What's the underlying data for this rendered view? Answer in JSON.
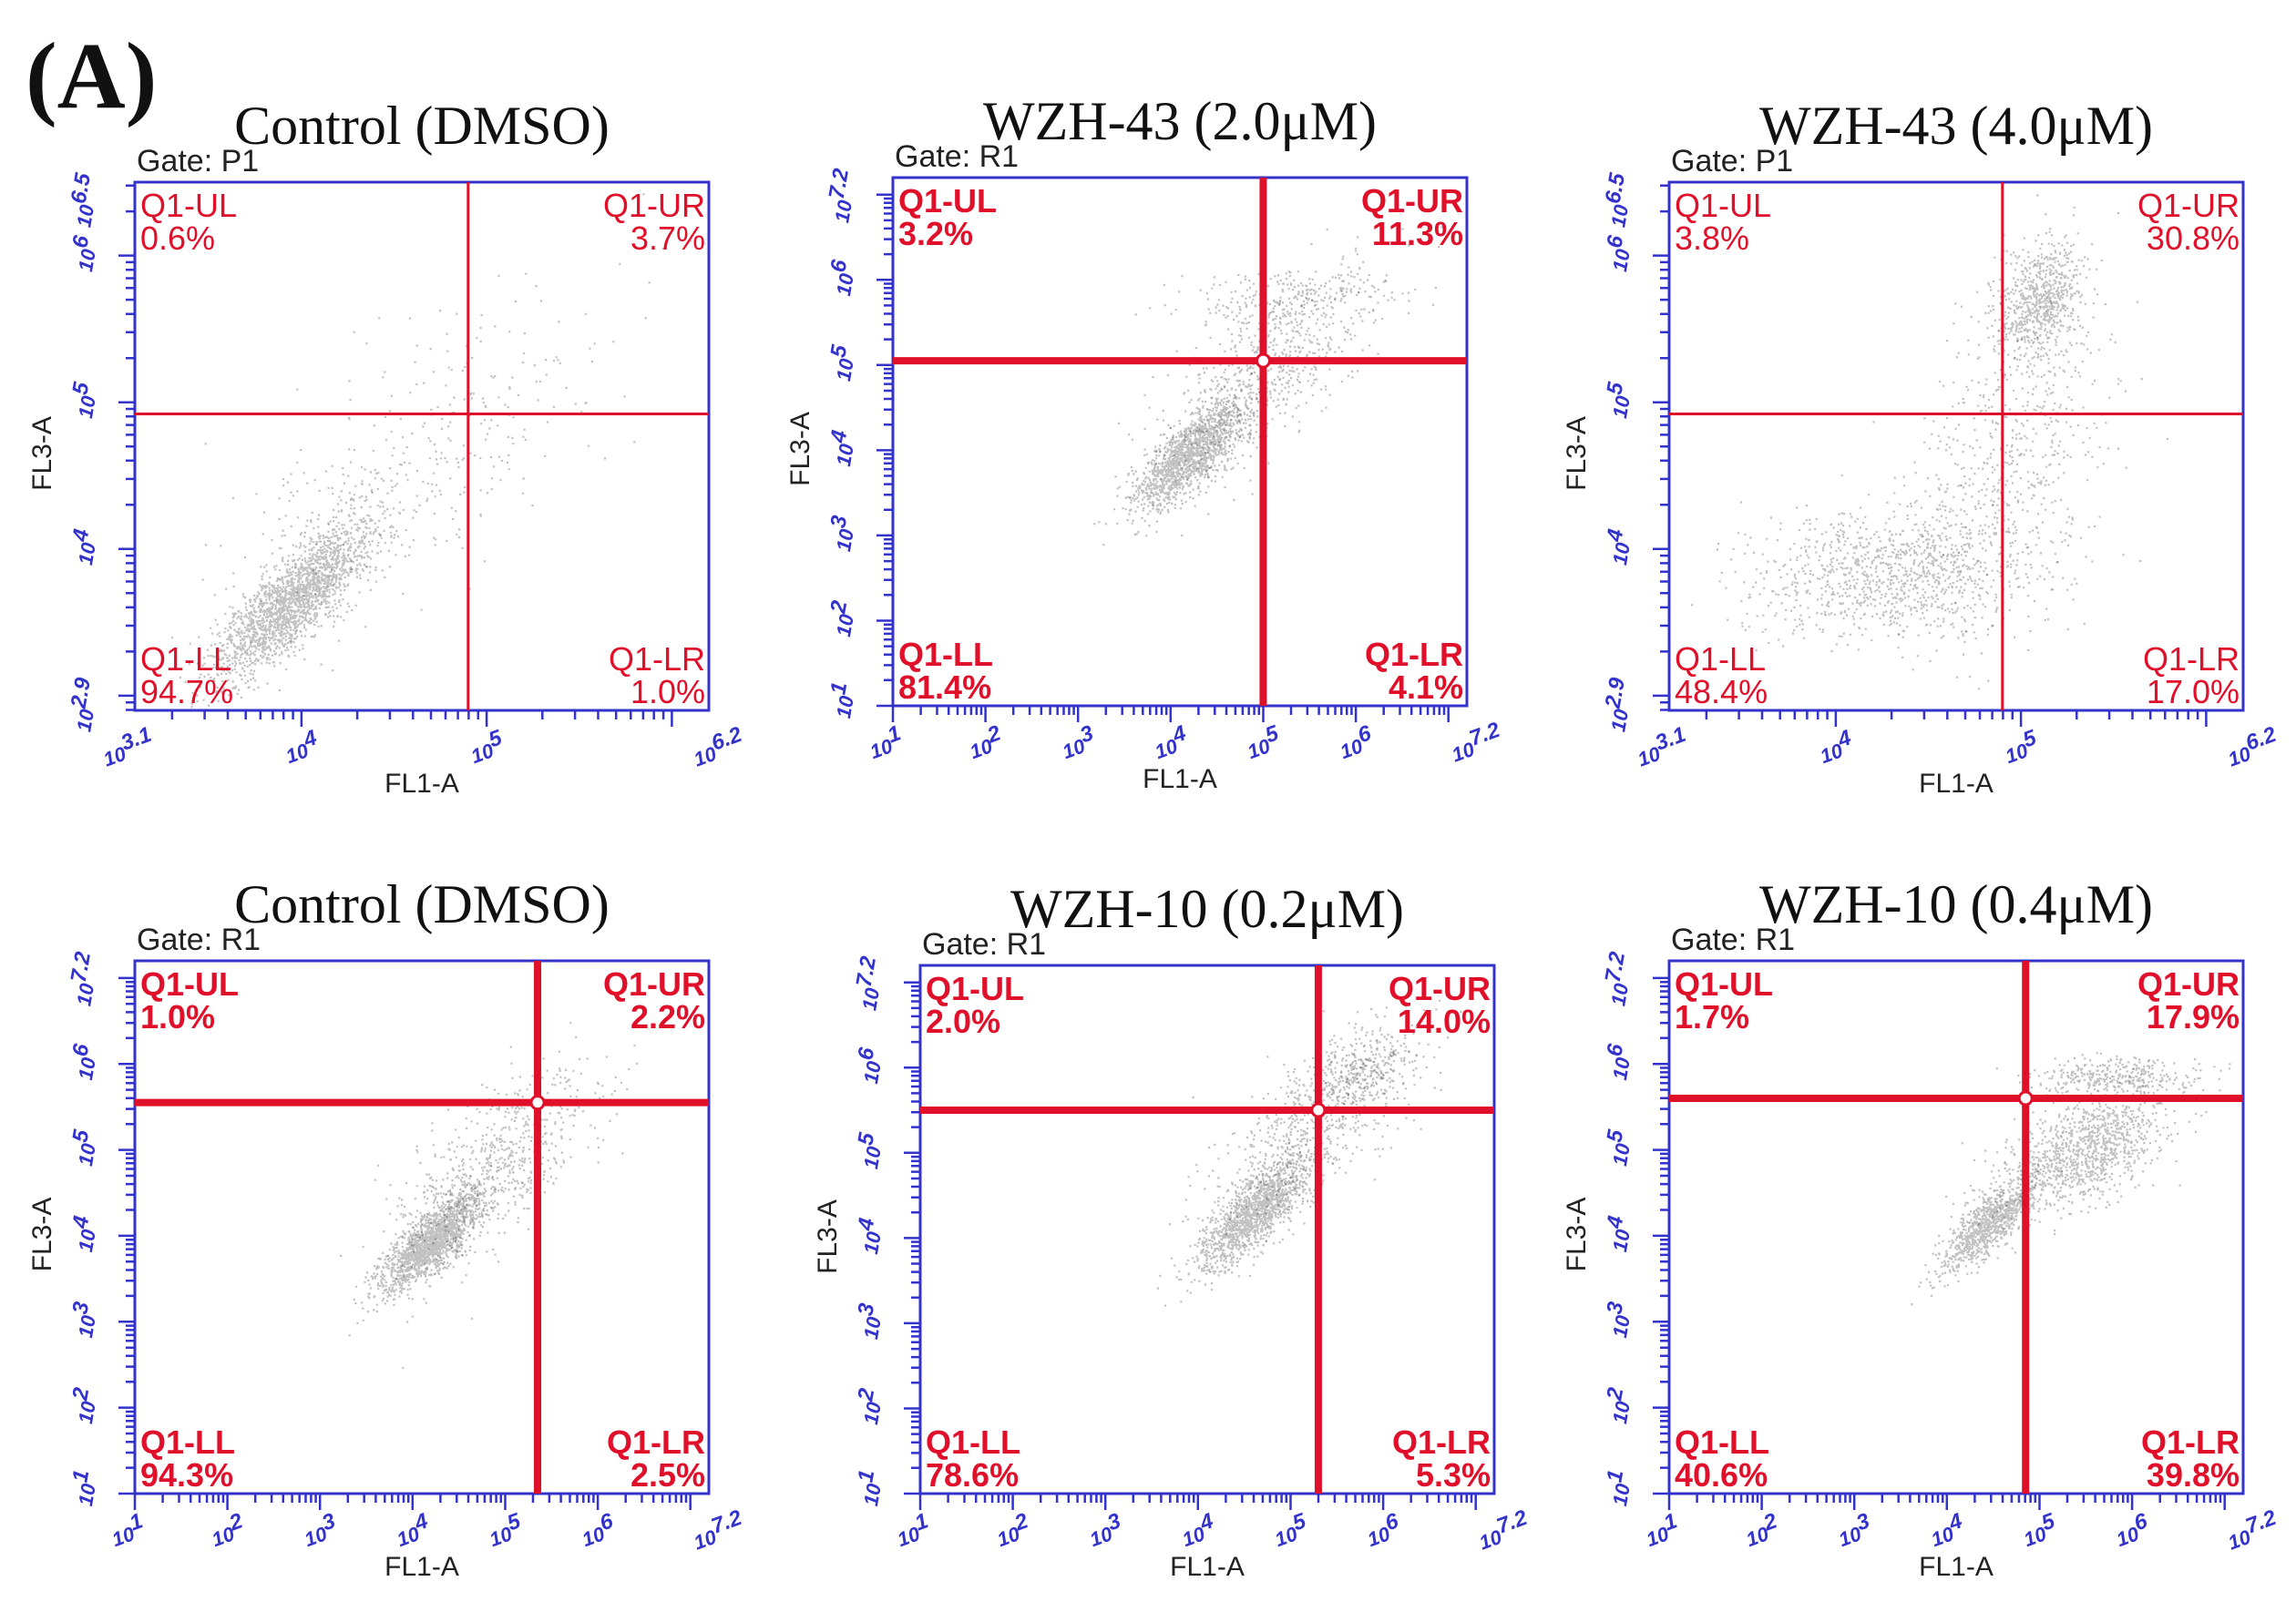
{
  "figure": {
    "panel_label": "(A)",
    "gate_prefix": "Gate: "
  },
  "colors": {
    "axis": "#3333cc",
    "quadrant": "#e0102a",
    "dots": "#222222",
    "title": "#111111"
  },
  "chart_data": [
    {
      "type": "scatter",
      "title": "Control (DMSO)",
      "gate": "P1",
      "xlabel": "FL1-A",
      "ylabel": "FL3-A",
      "xlim": [
        3.1,
        6.2
      ],
      "ylim": [
        2.9,
        6.5
      ],
      "xticks": [
        4,
        5
      ],
      "yticks": [
        4,
        5,
        6
      ],
      "xmin_label": "10^3.1",
      "xmax_label": "10^6.2",
      "ymin_label": "10^2.9",
      "ymax_label": "10^6.5",
      "gate_x": 4.9,
      "gate_y": 4.92,
      "thick": false,
      "quadrants": {
        "UL": "0.6%",
        "UR": "3.7%",
        "LL": "94.7%",
        "LR": "1.0%"
      },
      "quadrant_names": {
        "UL": "Q1-UL",
        "UR": "Q1-UR",
        "LL": "Q1-LL",
        "LR": "Q1-LR"
      },
      "clusters": [
        {
          "cx": 3.95,
          "cy": 3.65,
          "sx": 0.22,
          "sy": 0.28,
          "rho": 0.82,
          "w": 0.85
        },
        {
          "cx": 4.6,
          "cy": 4.6,
          "sx": 0.5,
          "sy": 0.6,
          "rho": 0.7,
          "w": 0.15
        }
      ]
    },
    {
      "type": "scatter",
      "title": "WZH-43 (2.0μM)",
      "gate": "R1",
      "xlabel": "FL1-A",
      "ylabel": "FL3-A",
      "xlim": [
        1,
        7.2
      ],
      "ylim": [
        1,
        7.2
      ],
      "xticks": [
        2,
        3,
        4,
        5,
        6
      ],
      "yticks": [
        2,
        3,
        4,
        5,
        6
      ],
      "xmin_label": "10^1",
      "xmax_label": "10^7.2",
      "ymin_label": "10^1",
      "ymax_label": "10^7.2",
      "gate_x": 5.0,
      "gate_y": 5.05,
      "thick": true,
      "quadrants": {
        "UL": "3.2%",
        "UR": "11.3%",
        "LL": "81.4%",
        "LR": "4.1%"
      },
      "quadrant_names": {
        "UL": "Q1-UL",
        "UR": "Q1-UR",
        "LL": "Q1-LL",
        "LR": "Q1-LR"
      },
      "clusters": [
        {
          "cx": 4.2,
          "cy": 3.95,
          "sx": 0.3,
          "sy": 0.32,
          "rho": 0.75,
          "w": 0.6
        },
        {
          "cx": 5.0,
          "cy": 4.9,
          "sx": 0.55,
          "sy": 0.6,
          "rho": 0.7,
          "w": 0.3
        },
        {
          "cx": 5.3,
          "cy": 5.8,
          "sx": 0.6,
          "sy": 0.18,
          "rho": 0.2,
          "w": 0.1
        }
      ]
    },
    {
      "type": "scatter",
      "title": "WZH-43 (4.0μM)",
      "gate": "P1",
      "xlabel": "FL1-A",
      "ylabel": "FL3-A",
      "xlim": [
        3.1,
        6.2
      ],
      "ylim": [
        2.9,
        6.5
      ],
      "xticks": [
        4,
        5
      ],
      "yticks": [
        4,
        5,
        6
      ],
      "xmin_label": "10^3.1",
      "xmax_label": "10^6.2",
      "ymin_label": "10^2.9",
      "ymax_label": "10^6.5",
      "gate_x": 4.9,
      "gate_y": 4.92,
      "thick": false,
      "quadrants": {
        "UL": "3.8%",
        "UR": "30.8%",
        "LL": "48.4%",
        "LR": "17.0%"
      },
      "quadrant_names": {
        "UL": "Q1-UL",
        "UR": "Q1-UR",
        "LL": "Q1-LL",
        "LR": "Q1-LR"
      },
      "clusters": [
        {
          "cx": 4.3,
          "cy": 3.85,
          "sx": 0.38,
          "sy": 0.22,
          "rho": 0.1,
          "w": 0.45
        },
        {
          "cx": 5.1,
          "cy": 5.7,
          "sx": 0.12,
          "sy": 0.2,
          "rho": 0.3,
          "w": 0.3
        },
        {
          "cx": 4.95,
          "cy": 4.6,
          "sx": 0.25,
          "sy": 0.55,
          "rho": 0.3,
          "w": 0.25
        }
      ]
    },
    {
      "type": "scatter",
      "title": "Control (DMSO)",
      "gate": "R1",
      "xlabel": "FL1-A",
      "ylabel": "FL3-A",
      "xlim": [
        1,
        7.2
      ],
      "ylim": [
        1,
        7.2
      ],
      "xticks": [
        2,
        3,
        4,
        5,
        6
      ],
      "yticks": [
        2,
        3,
        4,
        5,
        6
      ],
      "xmin_label": "10^1",
      "xmax_label": "10^7.2",
      "ymin_label": "10^1",
      "ymax_label": "10^7.2",
      "gate_x": 5.35,
      "gate_y": 5.55,
      "thick": true,
      "quadrants": {
        "UL": "1.0%",
        "UR": "2.2%",
        "LL": "94.3%",
        "LR": "2.5%"
      },
      "quadrant_names": {
        "UL": "Q1-UL",
        "UR": "Q1-UR",
        "LL": "Q1-LL",
        "LR": "Q1-LR"
      },
      "clusters": [
        {
          "cx": 4.2,
          "cy": 3.95,
          "sx": 0.28,
          "sy": 0.3,
          "rho": 0.78,
          "w": 0.7
        },
        {
          "cx": 4.9,
          "cy": 4.8,
          "sx": 0.55,
          "sy": 0.6,
          "rho": 0.7,
          "w": 0.3
        }
      ]
    },
    {
      "type": "scatter",
      "title": "WZH-10 (0.2μM)",
      "gate": "R1",
      "xlabel": "FL1-A",
      "ylabel": "FL3-A",
      "xlim": [
        1,
        7.2
      ],
      "ylim": [
        1,
        7.2
      ],
      "xticks": [
        2,
        3,
        4,
        5,
        6
      ],
      "yticks": [
        2,
        3,
        4,
        5,
        6
      ],
      "xmin_label": "10^1",
      "xmax_label": "10^7.2",
      "ymin_label": "10^1",
      "ymax_label": "10^7.2",
      "gate_x": 5.3,
      "gate_y": 5.5,
      "thick": true,
      "quadrants": {
        "UL": "2.0%",
        "UR": "14.0%",
        "LL": "78.6%",
        "LR": "5.3%"
      },
      "quadrant_names": {
        "UL": "Q1-UL",
        "UR": "Q1-UR",
        "LL": "Q1-LL",
        "LR": "Q1-LR"
      },
      "clusters": [
        {
          "cx": 4.6,
          "cy": 4.3,
          "sx": 0.3,
          "sy": 0.32,
          "rho": 0.78,
          "w": 0.6
        },
        {
          "cx": 5.3,
          "cy": 5.4,
          "sx": 0.55,
          "sy": 0.55,
          "rho": 0.7,
          "w": 0.3
        },
        {
          "cx": 5.75,
          "cy": 6.0,
          "sx": 0.25,
          "sy": 0.25,
          "rho": 0.3,
          "w": 0.1
        }
      ]
    },
    {
      "type": "scatter",
      "title": "WZH-10 (0.4μM)",
      "gate": "R1",
      "xlabel": "FL1-A",
      "ylabel": "FL3-A",
      "xlim": [
        1,
        7.2
      ],
      "ylim": [
        1,
        7.2
      ],
      "xticks": [
        2,
        3,
        4,
        5,
        6
      ],
      "yticks": [
        2,
        3,
        4,
        5,
        6
      ],
      "xmin_label": "10^1",
      "xmax_label": "10^7.2",
      "ymin_label": "10^1",
      "ymax_label": "10^7.2",
      "gate_x": 4.85,
      "gate_y": 5.6,
      "thick": true,
      "quadrants": {
        "UL": "1.7%",
        "UR": "17.9%",
        "LL": "40.6%",
        "LR": "39.8%"
      },
      "quadrant_names": {
        "UL": "Q1-UL",
        "UR": "Q1-UR",
        "LL": "Q1-LL",
        "LR": "Q1-LR"
      },
      "clusters": [
        {
          "cx": 4.45,
          "cy": 4.15,
          "sx": 0.26,
          "sy": 0.28,
          "rho": 0.8,
          "w": 0.4
        },
        {
          "cx": 5.5,
          "cy": 5.0,
          "sx": 0.45,
          "sy": 0.35,
          "rho": 0.5,
          "w": 0.45
        },
        {
          "cx": 5.8,
          "cy": 5.85,
          "sx": 0.45,
          "sy": 0.12,
          "rho": 0.1,
          "w": 0.15
        }
      ]
    }
  ]
}
